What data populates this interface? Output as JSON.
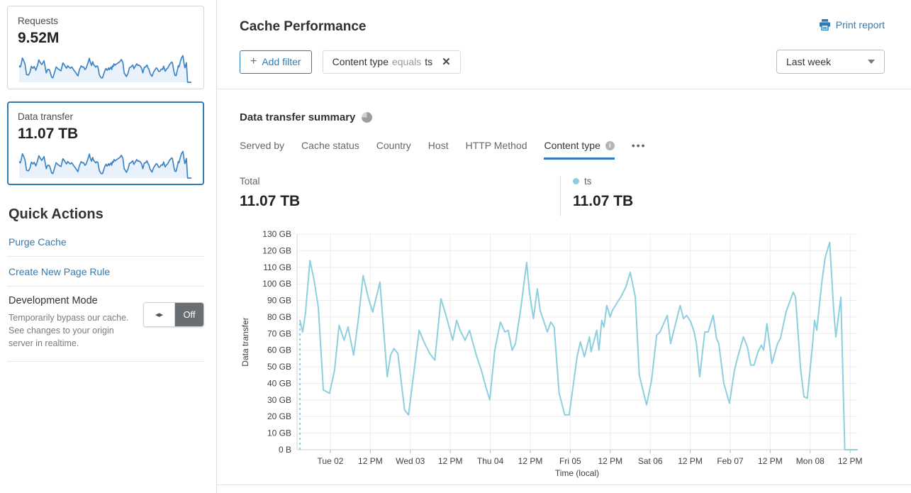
{
  "icons": {
    "plus": "+",
    "close": "✕",
    "info": "i",
    "toggle_arrows": "◂▸",
    "more": "•••"
  },
  "sidebar": {
    "requests_card": {
      "title": "Requests",
      "value": "9.52M"
    },
    "data_transfer_card": {
      "title": "Data transfer",
      "value": "11.07 TB"
    },
    "quick_actions": {
      "title": "Quick Actions",
      "links": [
        {
          "label": "Purge Cache"
        },
        {
          "label": "Create New Page Rule"
        }
      ],
      "development_mode": {
        "title": "Development Mode",
        "description": "Temporarily bypass our cache. See changes to your origin server in realtime.",
        "toggle_state": "Off"
      }
    }
  },
  "header": {
    "title": "Cache Performance",
    "print_label": "Print report",
    "time_range": "Last week"
  },
  "filters": {
    "add_label": "Add filter",
    "chip": {
      "field": "Content type",
      "operator": "equals",
      "value": "ts"
    }
  },
  "summary": {
    "title": "Data transfer summary",
    "tabs": [
      {
        "label": "Served by",
        "active": false
      },
      {
        "label": "Cache status",
        "active": false
      },
      {
        "label": "Country",
        "active": false
      },
      {
        "label": "Host",
        "active": false
      },
      {
        "label": "HTTP Method",
        "active": false
      },
      {
        "label": "Content type",
        "active": true,
        "info": true
      }
    ],
    "total_label": "Total",
    "total_value": "11.07 TB",
    "series_label": "ts",
    "series_value": "11.07 TB"
  },
  "colors": {
    "accent_blue": "#2f7cb5",
    "chart_line": "#8ccfdf",
    "spark_line": "#3d83c4",
    "spark_fill": "#e9f2fa",
    "grid": "#ededed",
    "axis": "#d2d2d2",
    "tick_text": "#3f3f3f"
  },
  "chart_data": {
    "type": "line",
    "title": "Data transfer summary",
    "ylabel": "Data transfer",
    "xlabel": "Time (local)",
    "unit": "GB",
    "ylim": [
      0,
      130
    ],
    "grid": true,
    "legend_position": "top-right",
    "y_ticks": [
      "0 B",
      "10 GB",
      "20 GB",
      "30 GB",
      "40 GB",
      "50 GB",
      "60 GB",
      "70 GB",
      "80 GB",
      "90 GB",
      "100 GB",
      "110 GB",
      "120 GB",
      "130 GB"
    ],
    "x_ticks": [
      "Tue 02",
      "12 PM",
      "Wed 03",
      "12 PM",
      "Thu 04",
      "12 PM",
      "Fri 05",
      "12 PM",
      "Sat 06",
      "12 PM",
      "Feb 07",
      "12 PM",
      "Mon 08",
      "12 PM"
    ],
    "series": [
      {
        "name": "ts",
        "total": "11.07 TB",
        "dashed_start": true,
        "points": [
          [
            0.005,
            78
          ],
          [
            0.01,
            71
          ],
          [
            0.015,
            82
          ],
          [
            0.023,
            114
          ],
          [
            0.03,
            103
          ],
          [
            0.038,
            86
          ],
          [
            0.047,
            36
          ],
          [
            0.058,
            34
          ],
          [
            0.067,
            48
          ],
          [
            0.075,
            75
          ],
          [
            0.084,
            66
          ],
          [
            0.091,
            74
          ],
          [
            0.101,
            57
          ],
          [
            0.11,
            80
          ],
          [
            0.118,
            105
          ],
          [
            0.127,
            92
          ],
          [
            0.135,
            83
          ],
          [
            0.148,
            101
          ],
          [
            0.161,
            44
          ],
          [
            0.167,
            57
          ],
          [
            0.173,
            61
          ],
          [
            0.18,
            58
          ],
          [
            0.192,
            24
          ],
          [
            0.199,
            21
          ],
          [
            0.208,
            45
          ],
          [
            0.218,
            72
          ],
          [
            0.228,
            64
          ],
          [
            0.237,
            58
          ],
          [
            0.246,
            54
          ],
          [
            0.257,
            91
          ],
          [
            0.266,
            81
          ],
          [
            0.278,
            66
          ],
          [
            0.285,
            78
          ],
          [
            0.291,
            72
          ],
          [
            0.3,
            66
          ],
          [
            0.308,
            72
          ],
          [
            0.32,
            57
          ],
          [
            0.329,
            48
          ],
          [
            0.337,
            38
          ],
          [
            0.344,
            30
          ],
          [
            0.353,
            60
          ],
          [
            0.363,
            77
          ],
          [
            0.371,
            71
          ],
          [
            0.377,
            72
          ],
          [
            0.384,
            60
          ],
          [
            0.39,
            64
          ],
          [
            0.399,
            84
          ],
          [
            0.41,
            113
          ],
          [
            0.415,
            95
          ],
          [
            0.422,
            79
          ],
          [
            0.429,
            97
          ],
          [
            0.434,
            84
          ],
          [
            0.447,
            71
          ],
          [
            0.453,
            77
          ],
          [
            0.459,
            74
          ],
          [
            0.468,
            34
          ],
          [
            0.478,
            21
          ],
          [
            0.486,
            21
          ],
          [
            0.5,
            56
          ],
          [
            0.506,
            65
          ],
          [
            0.513,
            56
          ],
          [
            0.522,
            68
          ],
          [
            0.525,
            59
          ],
          [
            0.535,
            72
          ],
          [
            0.539,
            60
          ],
          [
            0.544,
            78
          ],
          [
            0.548,
            74
          ],
          [
            0.553,
            87
          ],
          [
            0.559,
            80
          ],
          [
            0.563,
            84
          ],
          [
            0.572,
            89
          ],
          [
            0.578,
            92
          ],
          [
            0.587,
            98
          ],
          [
            0.595,
            107
          ],
          [
            0.604,
            92
          ],
          [
            0.611,
            45
          ],
          [
            0.624,
            27
          ],
          [
            0.633,
            42
          ],
          [
            0.642,
            69
          ],
          [
            0.648,
            71
          ],
          [
            0.661,
            81
          ],
          [
            0.667,
            64
          ],
          [
            0.684,
            87
          ],
          [
            0.69,
            79
          ],
          [
            0.696,
            81
          ],
          [
            0.703,
            77
          ],
          [
            0.709,
            71
          ],
          [
            0.713,
            64
          ],
          [
            0.719,
            44
          ],
          [
            0.728,
            71
          ],
          [
            0.734,
            71
          ],
          [
            0.743,
            81
          ],
          [
            0.749,
            67
          ],
          [
            0.753,
            64
          ],
          [
            0.762,
            40
          ],
          [
            0.772,
            28
          ],
          [
            0.781,
            48
          ],
          [
            0.787,
            56
          ],
          [
            0.797,
            68
          ],
          [
            0.804,
            62
          ],
          [
            0.81,
            51
          ],
          [
            0.816,
            51
          ],
          [
            0.823,
            59
          ],
          [
            0.829,
            63
          ],
          [
            0.833,
            60
          ],
          [
            0.839,
            76
          ],
          [
            0.848,
            52
          ],
          [
            0.858,
            64
          ],
          [
            0.863,
            67
          ],
          [
            0.873,
            83
          ],
          [
            0.886,
            95
          ],
          [
            0.89,
            92
          ],
          [
            0.899,
            49
          ],
          [
            0.905,
            32
          ],
          [
            0.911,
            31
          ],
          [
            0.92,
            62
          ],
          [
            0.924,
            78
          ],
          [
            0.928,
            72
          ],
          [
            0.937,
            101
          ],
          [
            0.943,
            116
          ],
          [
            0.951,
            125
          ],
          [
            0.958,
            85
          ],
          [
            0.962,
            68
          ],
          [
            0.971,
            92
          ],
          [
            0.978,
            0
          ],
          [
            1.0,
            0
          ]
        ]
      }
    ]
  }
}
